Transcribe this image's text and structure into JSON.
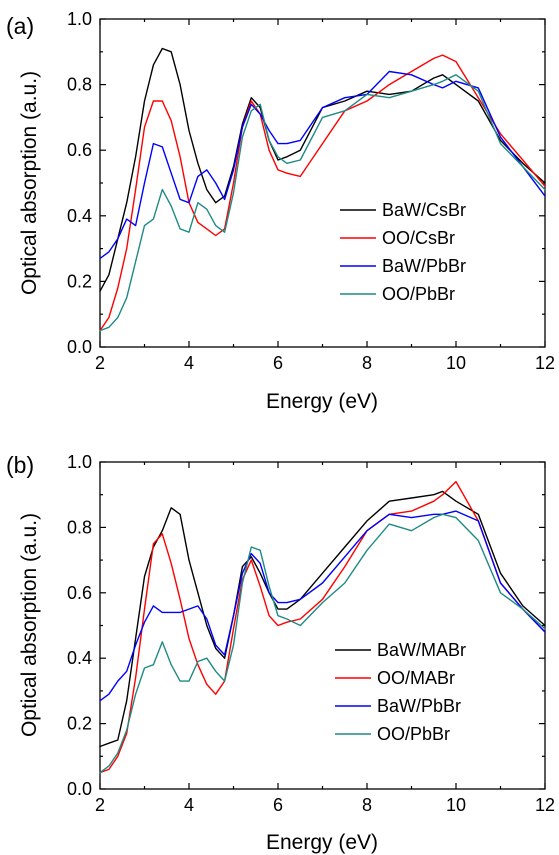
{
  "panels": [
    {
      "label": "(a)",
      "ylabel": "Optical absorption (a.u.)",
      "xlabel": "Energy (eV)"
    },
    {
      "label": "(b)",
      "ylabel": "Optical absorption (a.u.)",
      "xlabel": "Energy (eV)"
    }
  ],
  "chart_data": [
    {
      "type": "line",
      "xlim": [
        2,
        12
      ],
      "ylim": [
        0.0,
        1.0
      ],
      "xticks": [
        "2",
        "4",
        "6",
        "8",
        "10",
        "12"
      ],
      "yticks": [
        "0.0",
        "0.2",
        "0.4",
        "0.6",
        "0.8",
        "1.0"
      ],
      "grid": false,
      "legend": "lower-right",
      "series": [
        {
          "name": "BaW/CsBr",
          "color": "#000000",
          "x": [
            2.0,
            2.2,
            2.4,
            2.6,
            2.8,
            3.0,
            3.2,
            3.4,
            3.6,
            3.8,
            4.0,
            4.2,
            4.4,
            4.6,
            4.8,
            5.0,
            5.2,
            5.4,
            5.6,
            5.8,
            6.0,
            6.2,
            6.5,
            7.0,
            7.5,
            8.0,
            8.5,
            9.0,
            9.5,
            9.7,
            10.0,
            10.5,
            11.0,
            11.5,
            12.0
          ],
          "y": [
            0.17,
            0.22,
            0.33,
            0.44,
            0.58,
            0.75,
            0.86,
            0.91,
            0.9,
            0.8,
            0.66,
            0.56,
            0.48,
            0.44,
            0.46,
            0.55,
            0.68,
            0.76,
            0.73,
            0.63,
            0.57,
            0.58,
            0.6,
            0.73,
            0.75,
            0.78,
            0.77,
            0.78,
            0.82,
            0.83,
            0.8,
            0.75,
            0.63,
            0.56,
            0.5
          ]
        },
        {
          "name": "OO/CsBr",
          "color": "#ff0000",
          "x": [
            2.0,
            2.2,
            2.4,
            2.6,
            2.8,
            3.0,
            3.2,
            3.4,
            3.6,
            3.8,
            4.0,
            4.2,
            4.4,
            4.6,
            4.8,
            5.0,
            5.2,
            5.4,
            5.6,
            5.8,
            6.0,
            6.2,
            6.5,
            7.0,
            7.5,
            8.0,
            8.5,
            9.0,
            9.5,
            9.7,
            10.0,
            10.5,
            11.0,
            11.5,
            12.0
          ],
          "y": [
            0.05,
            0.09,
            0.18,
            0.3,
            0.48,
            0.67,
            0.75,
            0.75,
            0.69,
            0.58,
            0.44,
            0.38,
            0.36,
            0.34,
            0.36,
            0.5,
            0.67,
            0.75,
            0.71,
            0.6,
            0.54,
            0.53,
            0.52,
            0.62,
            0.72,
            0.75,
            0.8,
            0.84,
            0.88,
            0.89,
            0.87,
            0.76,
            0.65,
            0.57,
            0.49
          ]
        },
        {
          "name": "BaW/PbBr",
          "color": "#0000ff",
          "x": [
            2.0,
            2.2,
            2.4,
            2.6,
            2.8,
            3.0,
            3.2,
            3.4,
            3.6,
            3.8,
            4.0,
            4.2,
            4.4,
            4.6,
            4.8,
            5.0,
            5.2,
            5.4,
            5.6,
            5.8,
            6.0,
            6.2,
            6.5,
            7.0,
            7.5,
            8.0,
            8.5,
            9.0,
            9.5,
            9.7,
            10.0,
            10.5,
            11.0,
            11.5,
            12.0
          ],
          "y": [
            0.27,
            0.29,
            0.33,
            0.39,
            0.37,
            0.5,
            0.62,
            0.61,
            0.53,
            0.45,
            0.44,
            0.52,
            0.54,
            0.5,
            0.45,
            0.54,
            0.67,
            0.74,
            0.71,
            0.66,
            0.62,
            0.62,
            0.63,
            0.73,
            0.76,
            0.77,
            0.84,
            0.83,
            0.8,
            0.79,
            0.81,
            0.79,
            0.64,
            0.55,
            0.46
          ]
        },
        {
          "name": "OO/PbBr",
          "color": "#1f8a84",
          "x": [
            2.0,
            2.2,
            2.4,
            2.6,
            2.8,
            3.0,
            3.2,
            3.4,
            3.6,
            3.8,
            4.0,
            4.2,
            4.4,
            4.6,
            4.8,
            5.0,
            5.2,
            5.4,
            5.6,
            5.8,
            6.0,
            6.2,
            6.5,
            7.0,
            7.5,
            8.0,
            8.5,
            9.0,
            9.5,
            9.7,
            10.0,
            10.5,
            11.0,
            11.5,
            12.0
          ],
          "y": [
            0.05,
            0.06,
            0.09,
            0.15,
            0.26,
            0.37,
            0.39,
            0.48,
            0.43,
            0.36,
            0.35,
            0.44,
            0.42,
            0.37,
            0.35,
            0.47,
            0.64,
            0.72,
            0.74,
            0.63,
            0.58,
            0.56,
            0.57,
            0.7,
            0.72,
            0.77,
            0.76,
            0.78,
            0.8,
            0.81,
            0.83,
            0.78,
            0.62,
            0.55,
            0.48
          ]
        }
      ]
    },
    {
      "type": "line",
      "xlim": [
        2,
        12
      ],
      "ylim": [
        0.0,
        1.0
      ],
      "xticks": [
        "2",
        "4",
        "6",
        "8",
        "10",
        "12"
      ],
      "yticks": [
        "0.0",
        "0.2",
        "0.4",
        "0.6",
        "0.8",
        "1.0"
      ],
      "grid": false,
      "legend": "lower-right",
      "series": [
        {
          "name": "BaW/MABr",
          "color": "#000000",
          "x": [
            2.0,
            2.2,
            2.4,
            2.6,
            2.8,
            3.0,
            3.2,
            3.4,
            3.6,
            3.8,
            4.0,
            4.2,
            4.4,
            4.6,
            4.8,
            5.0,
            5.2,
            5.4,
            5.6,
            5.8,
            6.0,
            6.2,
            6.5,
            7.0,
            7.5,
            8.0,
            8.5,
            9.0,
            9.5,
            9.7,
            10.0,
            10.5,
            11.0,
            11.5,
            12.0
          ],
          "y": [
            0.13,
            0.14,
            0.15,
            0.27,
            0.46,
            0.65,
            0.74,
            0.79,
            0.86,
            0.84,
            0.7,
            0.6,
            0.5,
            0.43,
            0.4,
            0.53,
            0.68,
            0.71,
            0.66,
            0.6,
            0.55,
            0.55,
            0.58,
            0.66,
            0.74,
            0.82,
            0.88,
            0.89,
            0.9,
            0.91,
            0.88,
            0.84,
            0.66,
            0.56,
            0.5
          ]
        },
        {
          "name": "OO/MABr",
          "color": "#ff0000",
          "x": [
            2.0,
            2.2,
            2.4,
            2.6,
            2.8,
            3.0,
            3.2,
            3.4,
            3.6,
            3.8,
            4.0,
            4.2,
            4.4,
            4.6,
            4.8,
            5.0,
            5.2,
            5.4,
            5.6,
            5.8,
            6.0,
            6.2,
            6.5,
            7.0,
            7.5,
            8.0,
            8.5,
            9.0,
            9.5,
            9.7,
            10.0,
            10.5,
            11.0,
            11.5,
            12.0
          ],
          "y": [
            0.05,
            0.06,
            0.1,
            0.17,
            0.34,
            0.55,
            0.75,
            0.78,
            0.69,
            0.58,
            0.46,
            0.38,
            0.32,
            0.29,
            0.33,
            0.49,
            0.64,
            0.7,
            0.62,
            0.53,
            0.5,
            0.51,
            0.52,
            0.58,
            0.68,
            0.79,
            0.84,
            0.85,
            0.88,
            0.9,
            0.94,
            0.82,
            0.63,
            0.55,
            0.48
          ]
        },
        {
          "name": "BaW/PbBr",
          "color": "#0000ff",
          "x": [
            2.0,
            2.2,
            2.4,
            2.6,
            2.8,
            3.0,
            3.2,
            3.4,
            3.6,
            3.8,
            4.0,
            4.2,
            4.4,
            4.6,
            4.8,
            5.0,
            5.2,
            5.4,
            5.6,
            5.8,
            6.0,
            6.2,
            6.5,
            7.0,
            7.5,
            8.0,
            8.5,
            9.0,
            9.5,
            9.7,
            10.0,
            10.5,
            11.0,
            11.5,
            12.0
          ],
          "y": [
            0.27,
            0.29,
            0.33,
            0.36,
            0.44,
            0.51,
            0.56,
            0.54,
            0.54,
            0.54,
            0.55,
            0.56,
            0.52,
            0.44,
            0.41,
            0.53,
            0.66,
            0.72,
            0.69,
            0.6,
            0.57,
            0.57,
            0.58,
            0.63,
            0.71,
            0.79,
            0.84,
            0.83,
            0.84,
            0.84,
            0.85,
            0.82,
            0.63,
            0.55,
            0.48
          ]
        },
        {
          "name": "OO/PbBr",
          "color": "#1f8a84",
          "x": [
            2.0,
            2.2,
            2.4,
            2.6,
            2.8,
            3.0,
            3.2,
            3.4,
            3.6,
            3.8,
            4.0,
            4.2,
            4.4,
            4.6,
            4.8,
            5.0,
            5.2,
            5.4,
            5.6,
            5.8,
            6.0,
            6.2,
            6.5,
            7.0,
            7.5,
            8.0,
            8.5,
            9.0,
            9.5,
            9.7,
            10.0,
            10.5,
            11.0,
            11.5,
            12.0
          ],
          "y": [
            0.05,
            0.07,
            0.11,
            0.18,
            0.29,
            0.37,
            0.38,
            0.45,
            0.38,
            0.33,
            0.33,
            0.39,
            0.4,
            0.36,
            0.33,
            0.44,
            0.63,
            0.74,
            0.73,
            0.62,
            0.53,
            0.52,
            0.5,
            0.57,
            0.63,
            0.73,
            0.81,
            0.79,
            0.83,
            0.84,
            0.83,
            0.76,
            0.6,
            0.55,
            0.49
          ]
        }
      ]
    }
  ]
}
